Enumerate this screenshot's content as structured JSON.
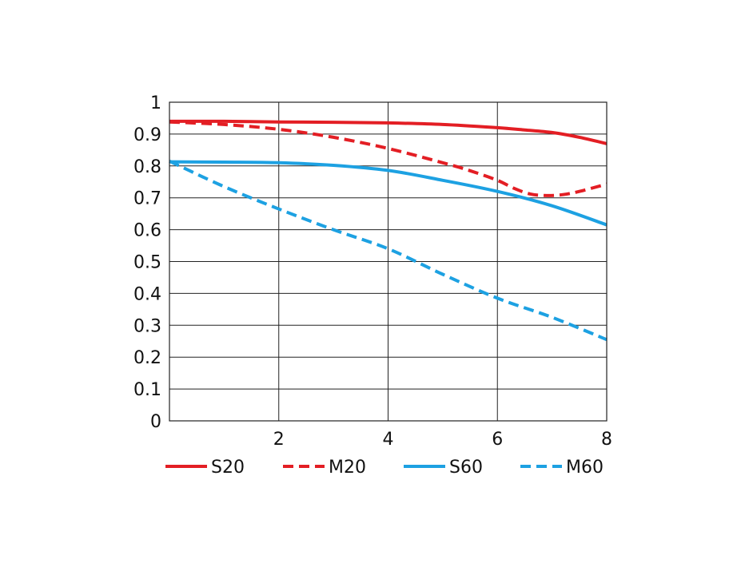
{
  "chart_data": {
    "type": "line",
    "xlim": [
      0,
      8
    ],
    "ylim": [
      0,
      1
    ],
    "x_ticks": [
      "2",
      "4",
      "6",
      "8"
    ],
    "y_ticks": [
      "0",
      "0.1",
      "0.2",
      "0.3",
      "0.4",
      "0.5",
      "0.6",
      "0.7",
      "0.8",
      "0.9",
      "1"
    ],
    "grid": true,
    "legend_position": "bottom",
    "series": [
      {
        "name": "S20",
        "color": "#e31e24",
        "style": "solid",
        "x": [
          0,
          1,
          2,
          3,
          4,
          5,
          6,
          6.5,
          7,
          7.5,
          8
        ],
        "y": [
          0.94,
          0.94,
          0.938,
          0.937,
          0.935,
          0.93,
          0.92,
          0.913,
          0.905,
          0.89,
          0.87
        ]
      },
      {
        "name": "M20",
        "color": "#e31e24",
        "style": "dashed",
        "x": [
          0,
          1,
          2,
          3,
          4,
          5,
          5.5,
          6,
          6.3,
          6.6,
          6.9,
          7.2,
          7.5,
          8
        ],
        "y": [
          0.938,
          0.93,
          0.915,
          0.89,
          0.855,
          0.81,
          0.785,
          0.755,
          0.73,
          0.712,
          0.707,
          0.71,
          0.72,
          0.743
        ]
      },
      {
        "name": "S60",
        "color": "#1da1e2",
        "style": "solid",
        "x": [
          0,
          1,
          2,
          3,
          4,
          5,
          6,
          7,
          8
        ],
        "y": [
          0.813,
          0.812,
          0.81,
          0.802,
          0.786,
          0.755,
          0.72,
          0.675,
          0.615
        ]
      },
      {
        "name": "M60",
        "color": "#1da1e2",
        "style": "dashed",
        "x": [
          0,
          1,
          2,
          3,
          4,
          5,
          6,
          7,
          8
        ],
        "y": [
          0.815,
          0.735,
          0.665,
          0.6,
          0.54,
          0.46,
          0.385,
          0.325,
          0.255
        ]
      }
    ]
  }
}
